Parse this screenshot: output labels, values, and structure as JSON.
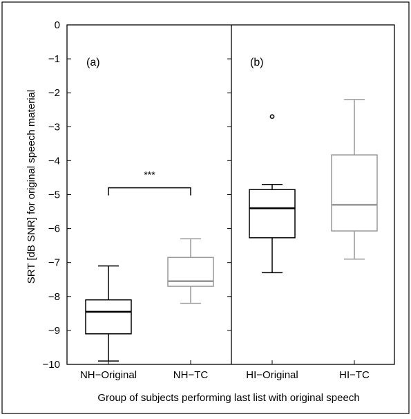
{
  "chart_data": {
    "type": "box",
    "ylabel": "SRT [dB SNR] for original speech material",
    "xlabel": "Group of subjects performing last list with original speech",
    "ylim": [
      -10,
      0
    ],
    "yticks": [
      "0",
      "−1",
      "−2",
      "−3",
      "−4",
      "−5",
      "−6",
      "−7",
      "−8",
      "−9",
      "−10"
    ],
    "yticks_values": [
      0,
      -1,
      -2,
      -3,
      -4,
      -5,
      -6,
      -7,
      -8,
      -9,
      -10
    ],
    "categories": [
      "NH−Original",
      "NH−TC",
      "HI−Original",
      "HI−TC"
    ],
    "panels": [
      {
        "label": "(a)",
        "categories": [
          0,
          1
        ]
      },
      {
        "label": "(b)",
        "categories": [
          2,
          3
        ]
      }
    ],
    "boxes": [
      {
        "name": "NH−Original",
        "color": "#000000",
        "whisker_low": -9.9,
        "q1": -9.1,
        "median": -8.45,
        "q3": -8.1,
        "whisker_high": -7.1,
        "outliers": []
      },
      {
        "name": "NH−TC",
        "color": "#999999",
        "whisker_low": -8.2,
        "q1": -7.7,
        "median": -7.55,
        "q3": -6.85,
        "whisker_high": -6.3,
        "outliers": []
      },
      {
        "name": "HI−Original",
        "color": "#000000",
        "whisker_low": -7.3,
        "q1": -6.27,
        "median": -5.4,
        "q3": -4.85,
        "whisker_high": -4.7,
        "outliers": [
          -2.7
        ]
      },
      {
        "name": "HI−TC",
        "color": "#999999",
        "whisker_low": -6.9,
        "q1": -6.07,
        "median": -5.3,
        "q3": -3.83,
        "whisker_high": -2.2,
        "outliers": []
      }
    ],
    "annotations": [
      {
        "text": "***",
        "between": [
          0,
          1
        ],
        "bracket_y": -4.8
      }
    ],
    "grid": false
  }
}
